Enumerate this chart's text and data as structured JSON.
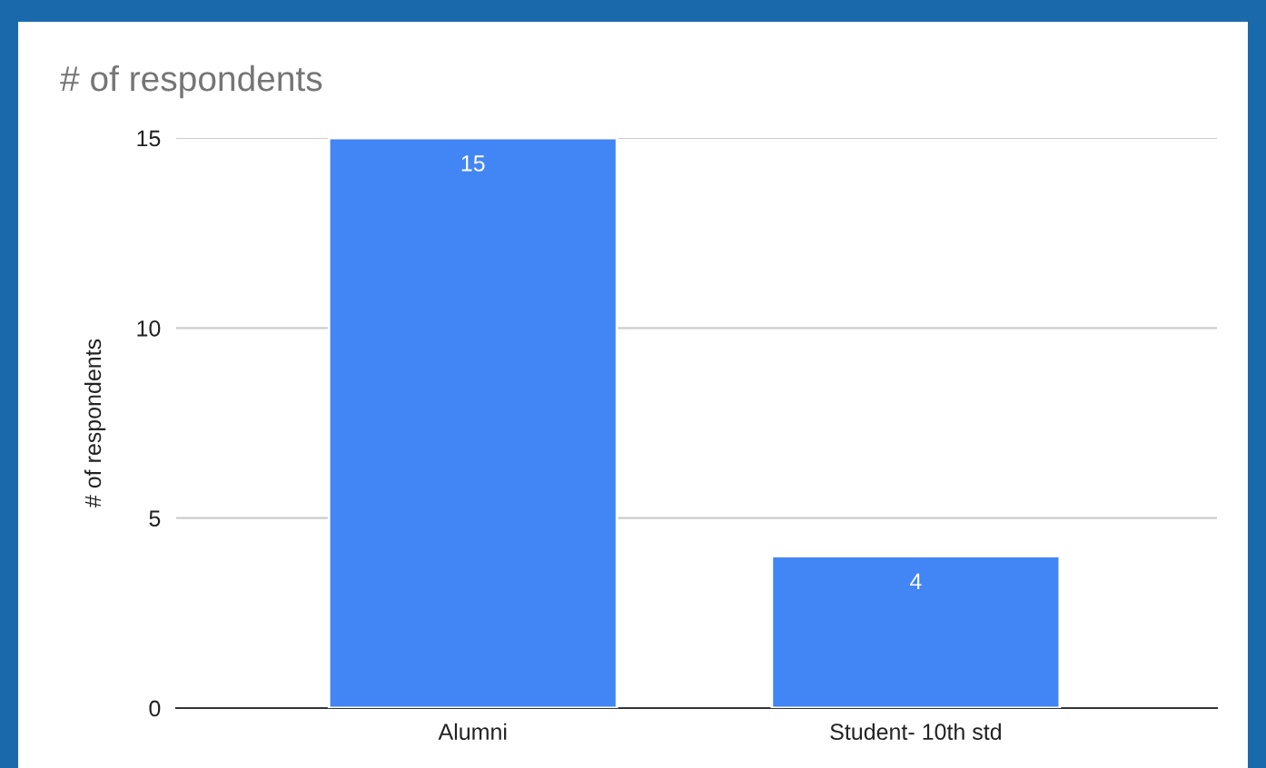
{
  "chart_data": {
    "type": "bar",
    "title": "# of respondents",
    "ylabel": "# of respondents",
    "categories": [
      "Alumni",
      "Student- 10th std"
    ],
    "values": [
      15,
      4
    ],
    "color": "#4285f4",
    "ylim": [
      0,
      15
    ],
    "yticks": [
      0,
      5,
      10,
      15
    ],
    "grid": "y",
    "data_labels": true,
    "legend": false
  }
}
